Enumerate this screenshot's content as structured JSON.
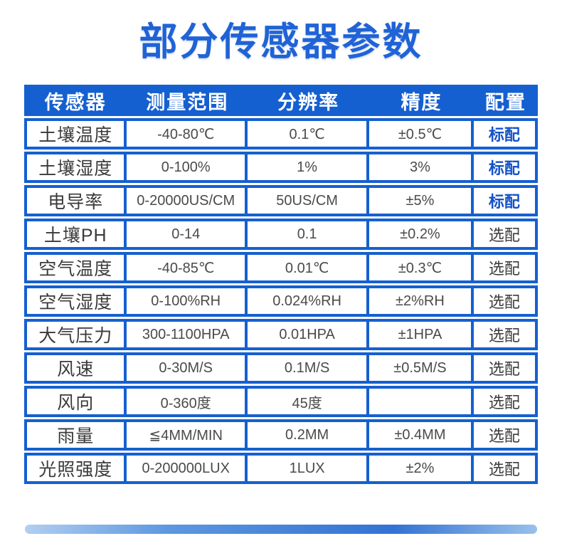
{
  "title": "部分传感器参数",
  "colors": {
    "primary_blue": "#1560d0",
    "header_text": "#ffffff",
    "standard_config_text": "#1452c9",
    "body_text": "#4a4a4a"
  },
  "table": {
    "headers": [
      "传感器",
      "测量范围",
      "分辨率",
      "精度",
      "配置"
    ],
    "rows": [
      {
        "sensor": "土壤温度",
        "range": "-40-80℃",
        "resolution": "0.1℃",
        "accuracy": "±0.5℃",
        "config": "标配",
        "standard": true
      },
      {
        "sensor": "土壤湿度",
        "range": "0-100%",
        "resolution": "1%",
        "accuracy": "3%",
        "config": "标配",
        "standard": true
      },
      {
        "sensor": "电导率",
        "range": "0-20000US/CM",
        "resolution": "50US/CM",
        "accuracy": "±5%",
        "config": "标配",
        "standard": true
      },
      {
        "sensor": "土壤PH",
        "range": "0-14",
        "resolution": "0.1",
        "accuracy": "±0.2%",
        "config": "选配",
        "standard": false
      },
      {
        "sensor": "空气温度",
        "range": "-40-85℃",
        "resolution": "0.01℃",
        "accuracy": "±0.3℃",
        "config": "选配",
        "standard": false
      },
      {
        "sensor": "空气湿度",
        "range": "0-100%RH",
        "resolution": "0.024%RH",
        "accuracy": "±2%RH",
        "config": "选配",
        "standard": false
      },
      {
        "sensor": "大气压力",
        "range": "300-1100HPA",
        "resolution": "0.01HPA",
        "accuracy": "±1HPA",
        "config": "选配",
        "standard": false
      },
      {
        "sensor": "风速",
        "range": "0-30M/S",
        "resolution": "0.1M/S",
        "accuracy": "±0.5M/S",
        "config": "选配",
        "standard": false
      },
      {
        "sensor": "风向",
        "range": "0-360度",
        "resolution": "45度",
        "accuracy": "",
        "config": "选配",
        "standard": false
      },
      {
        "sensor": "雨量",
        "range": "≦4MM/MIN",
        "resolution": "0.2MM",
        "accuracy": "±0.4MM",
        "config": "选配",
        "standard": false
      },
      {
        "sensor": "光照强度",
        "range": "0-200000LUX",
        "resolution": "1LUX",
        "accuracy": "±2%",
        "config": "选配",
        "standard": false
      }
    ]
  }
}
